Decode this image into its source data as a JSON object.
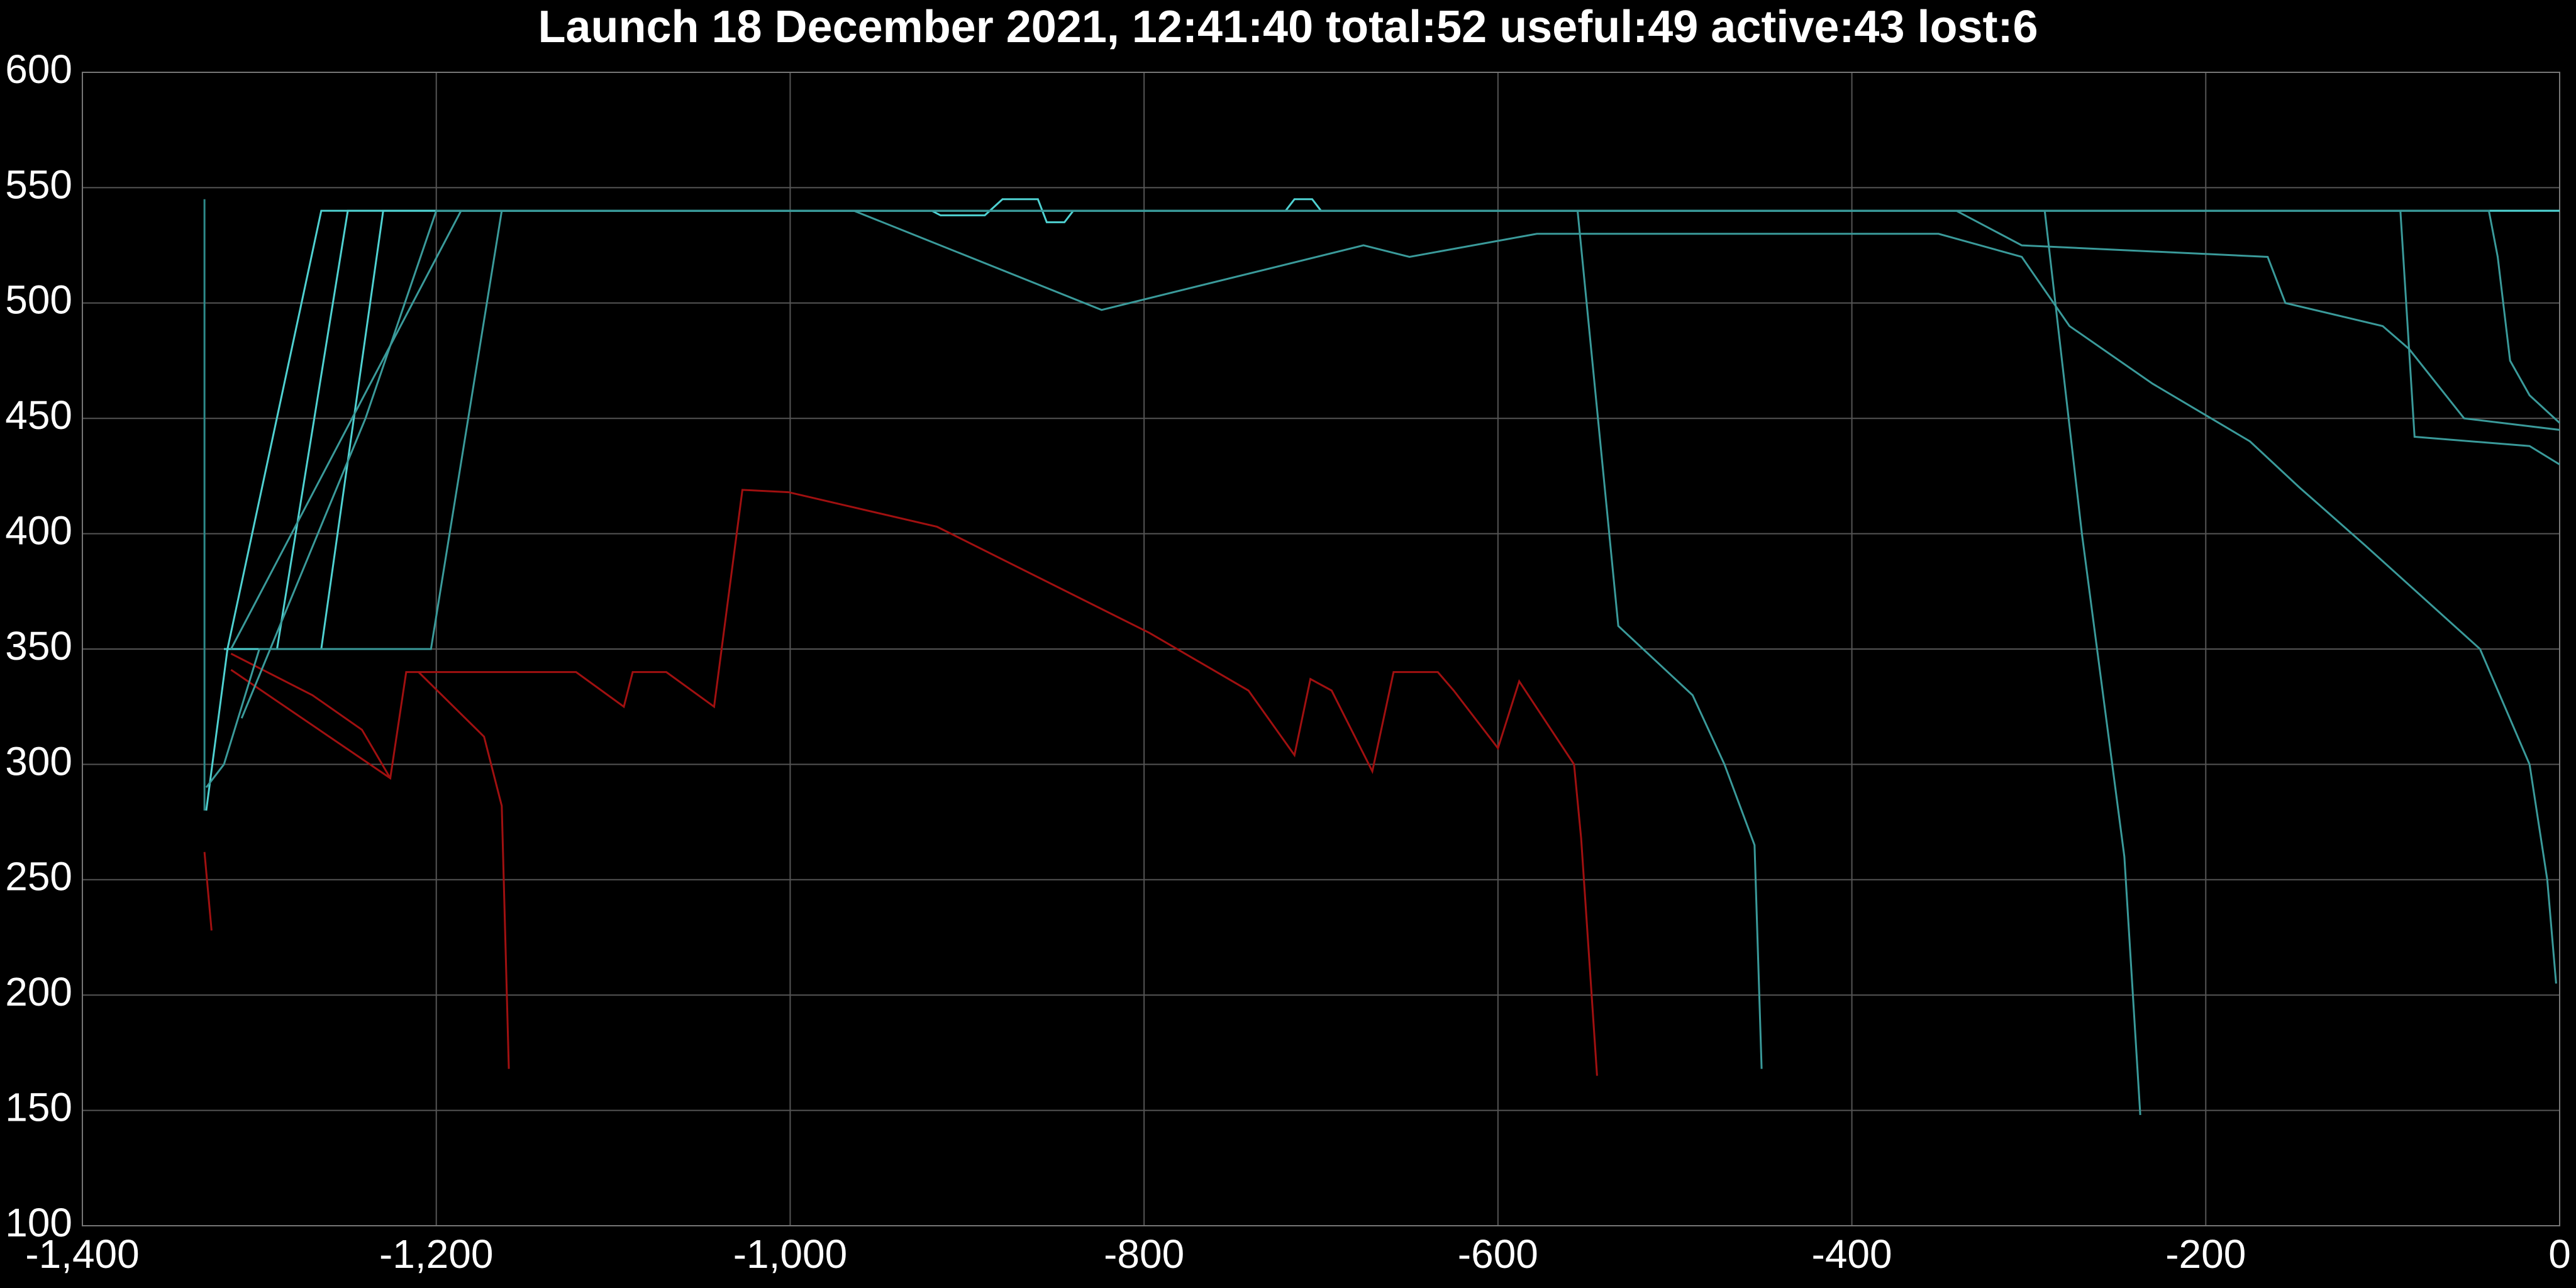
{
  "chart_data": {
    "type": "line",
    "title": "Launch 18 December 2021, 12:41:40 total:52 useful:49 active:43 lost:6",
    "xlim": [
      -1400,
      0
    ],
    "xticks": [
      {
        "value": -1400,
        "label": "-1,400"
      },
      {
        "value": -1200,
        "label": "-1,200"
      },
      {
        "value": -1000,
        "label": "-1,000"
      },
      -800,
      -600,
      -400,
      -200,
      0
    ],
    "ylim": [
      100,
      600
    ],
    "yticks": [
      100,
      150,
      200,
      250,
      300,
      350,
      400,
      450,
      500,
      550,
      600
    ],
    "grid": true,
    "series": [
      {
        "color": "#a01010",
        "x": [
          -1316,
          -1226,
          -1217,
          -1121,
          -1094,
          -1089,
          -1070,
          -1043,
          -1027,
          -1001,
          -917,
          -797,
          -741,
          -715,
          -706,
          -694,
          -671,
          -659,
          -634,
          -625,
          -600,
          -588,
          -557,
          -553,
          -544
        ],
        "values": [
          341,
          294,
          340,
          340,
          325,
          340,
          340,
          325,
          419,
          418,
          403,
          357,
          332,
          304,
          337,
          332,
          297,
          340,
          340,
          332,
          307,
          336,
          300,
          268,
          165
        ]
      },
      {
        "color": "#a01010",
        "x": [
          -1316,
          -1270,
          -1242,
          -1226
        ],
        "values": [
          348,
          330,
          315,
          294
        ]
      },
      {
        "color": "#a01010",
        "x": [
          -1210,
          -1173,
          -1163,
          -1159
        ],
        "values": [
          340,
          312,
          282,
          168
        ]
      },
      {
        "color": "#a01010",
        "x": [
          -1331,
          -1327
        ],
        "values": [
          262,
          228
        ]
      },
      {
        "color": "#2e8a8a",
        "x": [
          -1331,
          -1331
        ],
        "values": [
          545,
          280
        ]
      },
      {
        "color": "#4fd1d1",
        "x": [
          -1330,
          -1318,
          -1265,
          0
        ],
        "values": [
          280,
          350,
          540,
          540
        ]
      },
      {
        "color": "#4fd1d1",
        "x": [
          -1320,
          -1290,
          -1250,
          -720,
          -715,
          -705,
          -700,
          0
        ],
        "values": [
          350,
          350,
          540,
          540,
          545,
          545,
          540,
          540
        ]
      },
      {
        "color": "#4fd1d1",
        "x": [
          -1320,
          -1265,
          -1230,
          -920,
          -915,
          -890,
          -880,
          -860,
          -855,
          -845,
          -840,
          -400
        ],
        "values": [
          350,
          350,
          540,
          540,
          538,
          538,
          545,
          545,
          535,
          535,
          540,
          540
        ]
      },
      {
        "color": "#3a9a9a",
        "x": [
          -1330,
          -1320,
          -1300,
          -1203,
          -1163,
          -555,
          -532,
          -490,
          -472,
          -455,
          -451
        ],
        "values": [
          290,
          300,
          350,
          350,
          540,
          540,
          360,
          330,
          300,
          265,
          168
        ]
      },
      {
        "color": "#3a9a9a",
        "x": [
          -291,
          -270,
          -246,
          -237
        ],
        "values": [
          540,
          400,
          260,
          148
        ]
      },
      {
        "color": "#3a9a9a",
        "x": [
          -1316,
          -1186,
          -964,
          -824,
          -676,
          -650,
          -578,
          -351,
          -304,
          -277,
          -230,
          -175,
          -147,
          -110,
          -45,
          -17,
          -7,
          -2
        ],
        "values": [
          350,
          540,
          540,
          497,
          525,
          520,
          530,
          530,
          520,
          490,
          465,
          440,
          420,
          395,
          350,
          300,
          250,
          205
        ]
      },
      {
        "color": "#3a9a9a",
        "x": [
          -1310,
          -1240,
          -1200,
          -341,
          -304,
          -165,
          -155,
          -100,
          -85,
          -54,
          0
        ],
        "values": [
          320,
          450,
          540,
          540,
          525,
          520,
          500,
          490,
          480,
          450,
          445
        ]
      },
      {
        "color": "#3a9a9a",
        "x": [
          -1200,
          -90,
          -82,
          -17,
          0
        ],
        "values": [
          540,
          540,
          442,
          438,
          430
        ]
      },
      {
        "color": "#3a9a9a",
        "x": [
          -1200,
          -40,
          -35,
          -28,
          -17,
          0
        ],
        "values": [
          540,
          540,
          520,
          475,
          460,
          448
        ]
      }
    ]
  }
}
